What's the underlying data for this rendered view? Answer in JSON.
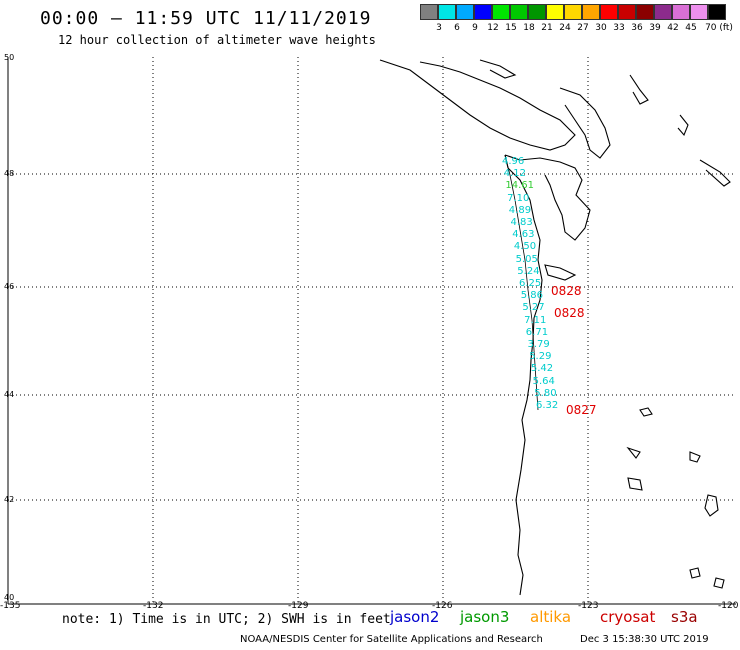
{
  "header": {
    "title": "00:00 — 11:59 UTC 11/11/2019",
    "subtitle": "12 hour collection of altimeter wave heights"
  },
  "scale": {
    "colors": [
      "#808080",
      "#00e6e6",
      "#00aaff",
      "#0000ff",
      "#00e600",
      "#00c800",
      "#009600",
      "#ffff00",
      "#ffd700",
      "#ffa500",
      "#ff0000",
      "#c80000",
      "#8b0000",
      "#8c2b8c",
      "#da70d6",
      "#ee90ee",
      "#000000"
    ],
    "labels": [
      "3",
      "6",
      "9",
      "12",
      "15",
      "18",
      "21",
      "24",
      "27",
      "30",
      "33",
      "36",
      "39",
      "42",
      "45",
      "70 (ft)"
    ]
  },
  "axes": {
    "lat_labels": [
      "50",
      "48",
      "46",
      "44",
      "42",
      "40"
    ],
    "lon_labels": [
      "-135",
      "-132",
      "-129",
      "-126",
      "-123",
      "-120"
    ]
  },
  "readings": {
    "values": [
      "4.96",
      "4.12",
      "14.61",
      "7.10",
      "4.89",
      "4.83",
      "4.63",
      "4.50",
      "5.05",
      "5.24",
      "6.25",
      "5.86",
      "5.27",
      "7.11",
      "6.71",
      "3.79",
      "5.29",
      "5.42",
      "5.64",
      "5.80",
      "6.32"
    ],
    "colors": [
      "#00cccc",
      "#00cccc",
      "#33cc33",
      "#00cccc",
      "#00cccc",
      "#00cccc",
      "#00cccc",
      "#00cccc",
      "#00cccc",
      "#00cccc",
      "#00cccc",
      "#00cccc",
      "#00cccc",
      "#00cccc",
      "#00cccc",
      "#00cccc",
      "#00cccc",
      "#00cccc",
      "#00cccc",
      "#00cccc",
      "#00cccc"
    ]
  },
  "times": [
    "0828",
    "0828",
    "0827"
  ],
  "footer": {
    "note": "note: 1) Time is in UTC; 2) SWH is in feet",
    "satellites": [
      {
        "name": "jason2",
        "color": "#0000cc"
      },
      {
        "name": "jason3",
        "color": "#009900"
      },
      {
        "name": "altika",
        "color": "#ff9900"
      },
      {
        "name": "cryosat",
        "color": "#cc0000"
      },
      {
        "name": "s3a",
        "color": "#990000"
      }
    ],
    "credit": "NOAA/NESDIS Center for Satellite Applications and Research",
    "timestamp": "Dec  3 15:38:30 UTC 2019"
  }
}
